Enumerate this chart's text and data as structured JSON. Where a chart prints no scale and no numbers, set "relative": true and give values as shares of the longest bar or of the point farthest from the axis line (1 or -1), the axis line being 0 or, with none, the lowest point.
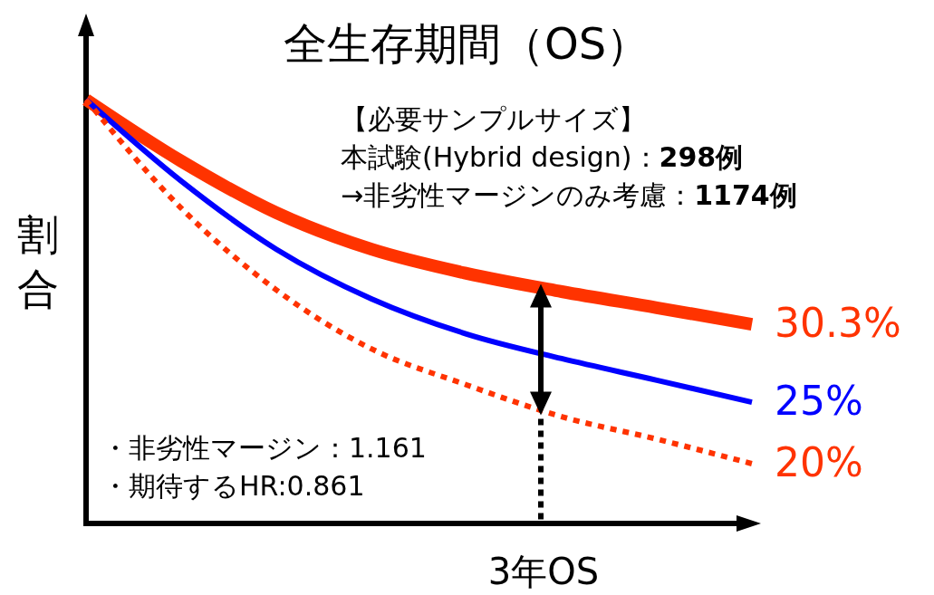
{
  "chart_data": {
    "type": "line",
    "relative": true,
    "title": "全生存期間（OS）",
    "xlabel": "3年OS",
    "ylabel": "割合",
    "categories": [
      null,
      null,
      null,
      null,
      null,
      null,
      null,
      null
    ],
    "series": [
      {
        "name": "30.3%",
        "color": "#ff3300",
        "line_style": "solid",
        "values": [
          1,
          0.855,
          0.733,
          0.647,
          0.59,
          0.547,
          0.509,
          0.47
        ]
      },
      {
        "name": "25%",
        "color": "#0000ff",
        "line_style": "solid",
        "values": [
          1,
          0.808,
          0.647,
          0.53,
          0.447,
          0.389,
          0.338,
          0.286
        ]
      },
      {
        "name": "20%",
        "color": "#ff3300",
        "line_style": "dotted",
        "values": [
          1,
          0.744,
          0.551,
          0.412,
          0.327,
          0.252,
          0.199,
          0.141
        ]
      }
    ],
    "annotations": [
      "【必要サンプルサイズ】",
      "本試験(Hybrid design)：298例",
      "→非劣性マージンのみ考慮：1174例",
      "・非劣性マージン：1.161",
      "・期待するHR:0.861"
    ]
  }
}
